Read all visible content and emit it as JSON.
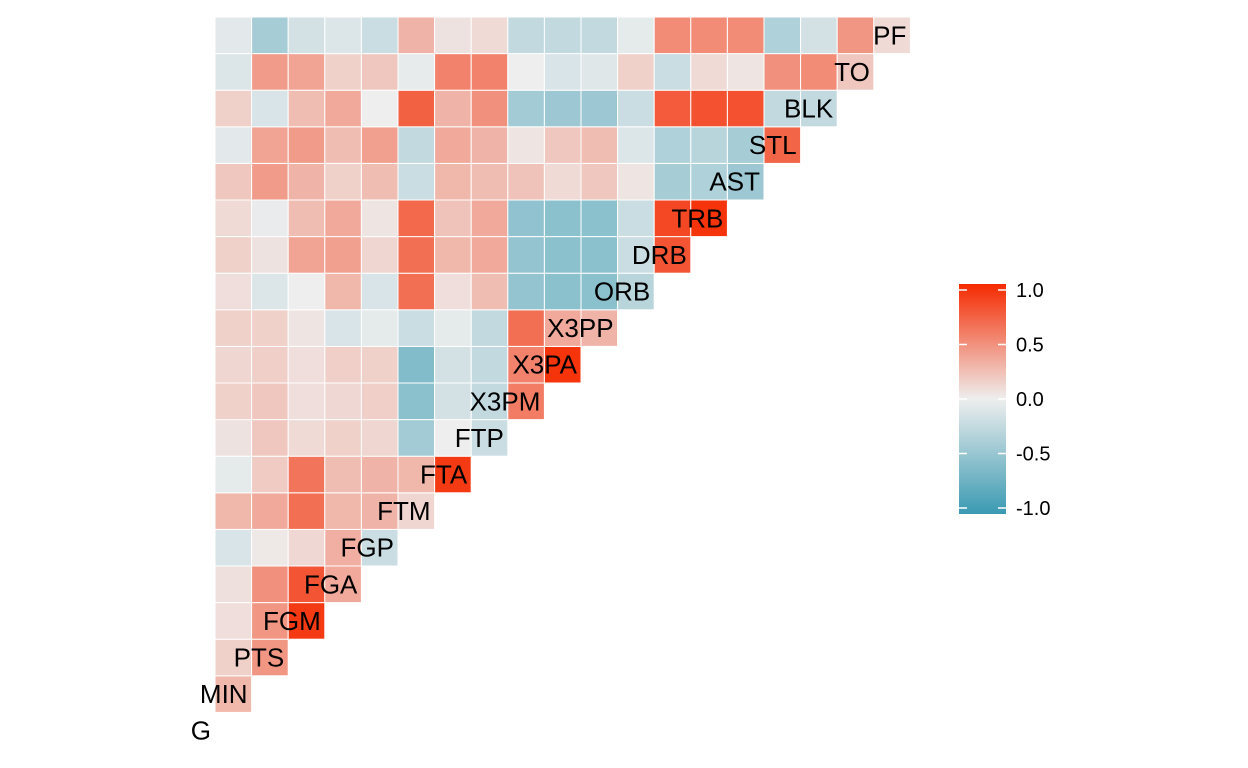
{
  "chart_data": {
    "type": "heatmap",
    "title": "",
    "xlabel": "",
    "ylabel": "",
    "layout": "lower-triangle",
    "variables": [
      "G",
      "MIN",
      "PTS",
      "FGM",
      "FGA",
      "FGP",
      "FTM",
      "FTA",
      "FTP",
      "X3PM",
      "X3PA",
      "X3PP",
      "ORB",
      "DRB",
      "TRB",
      "AST",
      "STL",
      "BLK",
      "TO",
      "PF"
    ],
    "matrix_rows": [
      [],
      [
        0.28
      ],
      [
        0.15,
        0.45
      ],
      [
        0.08,
        0.45,
        0.92
      ],
      [
        0.07,
        0.48,
        0.78,
        0.35
      ],
      [
        -0.12,
        0.03,
        0.11,
        0.32,
        -0.2
      ],
      [
        0.28,
        0.35,
        0.65,
        0.28,
        0.3,
        0.12
      ],
      [
        -0.05,
        0.18,
        0.62,
        0.25,
        0.3,
        0.28,
        0.92
      ],
      [
        0.06,
        0.2,
        0.1,
        0.15,
        0.12,
        -0.42,
        0.0,
        -0.2
      ],
      [
        0.15,
        0.2,
        0.08,
        0.11,
        0.16,
        -0.55,
        -0.15,
        -0.25,
        0.58
      ],
      [
        0.12,
        0.16,
        0.08,
        0.16,
        0.15,
        -0.6,
        -0.15,
        -0.25,
        0.55,
        0.95
      ],
      [
        0.15,
        0.15,
        0.05,
        -0.12,
        -0.05,
        -0.2,
        -0.05,
        -0.25,
        0.65,
        0.35,
        0.3
      ],
      [
        0.08,
        -0.1,
        0.0,
        0.28,
        -0.12,
        0.65,
        0.08,
        0.25,
        -0.5,
        -0.55,
        -0.55,
        -0.3
      ],
      [
        0.15,
        0.06,
        0.38,
        0.4,
        0.12,
        0.65,
        0.28,
        0.35,
        -0.5,
        -0.55,
        -0.55,
        -0.2,
        0.78
      ],
      [
        0.1,
        -0.03,
        0.25,
        0.35,
        0.05,
        0.68,
        0.22,
        0.35,
        -0.52,
        -0.55,
        -0.55,
        -0.2,
        0.85,
        0.95
      ],
      [
        0.2,
        0.42,
        0.3,
        0.15,
        0.25,
        -0.2,
        0.28,
        0.25,
        0.22,
        0.1,
        0.2,
        0.05,
        -0.4,
        -0.35,
        -0.45
      ],
      [
        -0.06,
        0.38,
        0.42,
        0.25,
        0.4,
        -0.25,
        0.35,
        0.3,
        0.05,
        0.2,
        0.25,
        -0.1,
        -0.35,
        -0.3,
        -0.4,
        0.7
      ],
      [
        0.15,
        -0.12,
        0.25,
        0.35,
        0.0,
        0.72,
        0.3,
        0.48,
        -0.42,
        -0.45,
        -0.45,
        -0.2,
        0.75,
        0.8,
        0.8,
        -0.25,
        -0.25
      ],
      [
        -0.1,
        0.42,
        0.38,
        0.15,
        0.2,
        -0.04,
        0.55,
        0.55,
        0.0,
        -0.12,
        -0.08,
        0.15,
        -0.2,
        0.1,
        0.05,
        0.48,
        0.5,
        0.2
      ],
      [
        -0.06,
        -0.4,
        -0.15,
        -0.1,
        -0.2,
        0.3,
        0.06,
        0.1,
        -0.25,
        -0.25,
        -0.25,
        -0.05,
        0.5,
        0.5,
        0.5,
        -0.35,
        -0.15,
        0.45,
        0.1
      ]
    ],
    "legend": {
      "placement": "right",
      "ticks": [
        "1.0",
        "0.5",
        "0.0",
        "-0.5",
        "-1.0"
      ],
      "tick_values": [
        1.0,
        0.5,
        0.0,
        -0.5,
        -1.0
      ],
      "range": [
        -1.0,
        1.0
      ]
    },
    "colors": {
      "high": "#f52a00",
      "mid": "#eeeeee",
      "low": "#3a9ab2",
      "tile_border": "#ffffff"
    }
  }
}
